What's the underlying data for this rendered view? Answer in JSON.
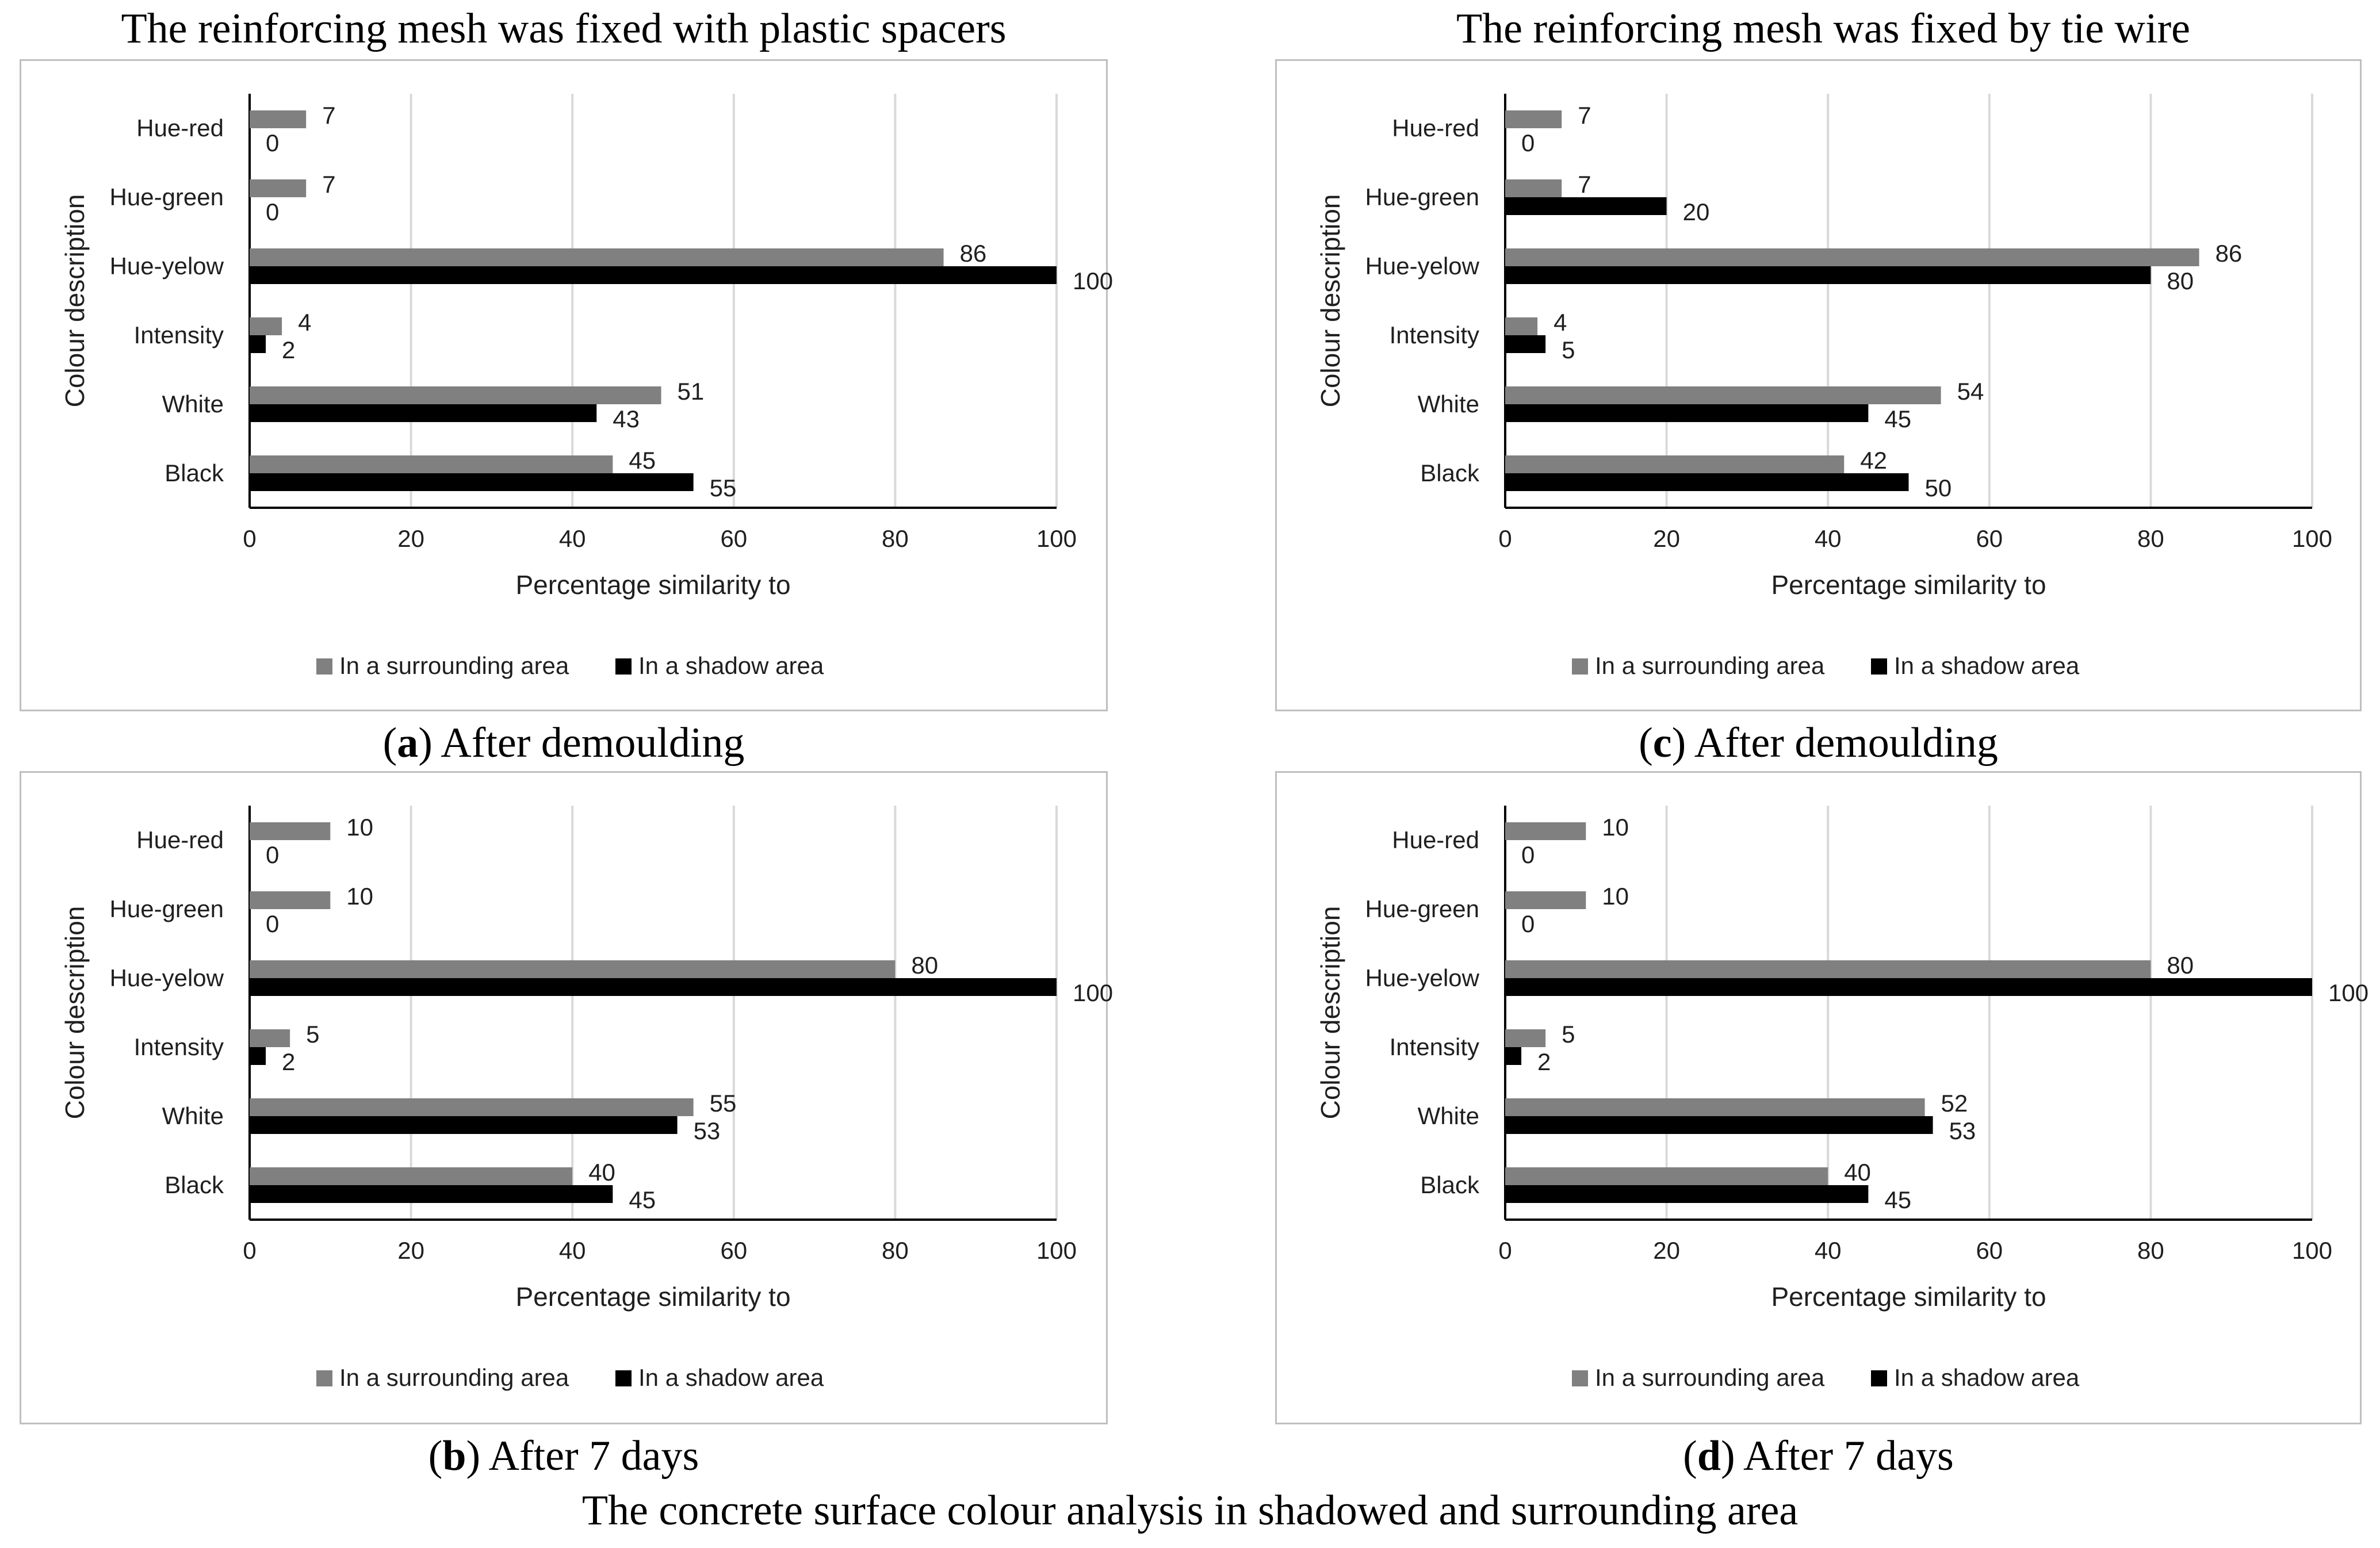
{
  "column_titles": {
    "left": "The reinforcing mesh was fixed with plastic spacers",
    "right": "The reinforcing mesh was fixed by tie wire"
  },
  "main_caption": "The concrete surface colour analysis in shadowed and surrounding area",
  "colors": {
    "surrounding": "#808080",
    "shadow": "#000000",
    "grid": "#d9d9d9",
    "frame": "#bfbfbf"
  },
  "chart_data": [
    {
      "id": "a",
      "type": "bar",
      "orientation": "horizontal",
      "caption_letter": "a",
      "caption_text": ") After demoulding",
      "categories": [
        "Hue-red",
        "Hue-green",
        "Hue-yelow",
        "Intensity",
        "White",
        "Black"
      ],
      "series": [
        {
          "name": "In a surrounding area",
          "values": [
            7,
            7,
            86,
            4,
            51,
            45
          ]
        },
        {
          "name": "In a shadow area",
          "values": [
            0,
            0,
            100,
            2,
            43,
            55
          ]
        }
      ],
      "xlabel": "Percentage similarity to",
      "ylabel": "Colour description",
      "xlim": [
        0,
        100
      ],
      "xticks": [
        0,
        20,
        40,
        60,
        80,
        100
      ],
      "grid": true,
      "legend": "bottom"
    },
    {
      "id": "b",
      "type": "bar",
      "orientation": "horizontal",
      "caption_letter": "b",
      "caption_text": ") After 7 days",
      "categories": [
        "Hue-red",
        "Hue-green",
        "Hue-yelow",
        "Intensity",
        "White",
        "Black"
      ],
      "series": [
        {
          "name": "In a surrounding area",
          "values": [
            10,
            10,
            80,
            5,
            55,
            40
          ]
        },
        {
          "name": "In a shadow area",
          "values": [
            0,
            0,
            100,
            2,
            53,
            45
          ]
        }
      ],
      "xlabel": "Percentage similarity to",
      "ylabel": "Colour description",
      "xlim": [
        0,
        100
      ],
      "xticks": [
        0,
        20,
        40,
        60,
        80,
        100
      ],
      "grid": true,
      "legend": "bottom"
    },
    {
      "id": "c",
      "type": "bar",
      "orientation": "horizontal",
      "caption_letter": "c",
      "caption_text": ") After demoulding",
      "categories": [
        "Hue-red",
        "Hue-green",
        "Hue-yelow",
        "Intensity",
        "White",
        "Black"
      ],
      "series": [
        {
          "name": "In a surrounding area",
          "values": [
            7,
            7,
            86,
            4,
            54,
            42
          ]
        },
        {
          "name": "In a shadow area",
          "values": [
            0,
            20,
            80,
            5,
            45,
            50
          ]
        }
      ],
      "xlabel": "Percentage similarity to",
      "ylabel": "Colour description",
      "xlim": [
        0,
        100
      ],
      "xticks": [
        0,
        20,
        40,
        60,
        80,
        100
      ],
      "grid": true,
      "legend": "bottom"
    },
    {
      "id": "d",
      "type": "bar",
      "orientation": "horizontal",
      "caption_letter": "d",
      "caption_text": ") After 7 days",
      "categories": [
        "Hue-red",
        "Hue-green",
        "Hue-yelow",
        "Intensity",
        "White",
        "Black"
      ],
      "series": [
        {
          "name": "In a surrounding area",
          "values": [
            10,
            10,
            80,
            5,
            52,
            40
          ]
        },
        {
          "name": "In a shadow area",
          "values": [
            0,
            0,
            100,
            2,
            53,
            45
          ]
        }
      ],
      "xlabel": "Percentage similarity to",
      "ylabel": "Colour description",
      "xlim": [
        0,
        100
      ],
      "xticks": [
        0,
        20,
        40,
        60,
        80,
        100
      ],
      "grid": true,
      "legend": "bottom"
    }
  ]
}
